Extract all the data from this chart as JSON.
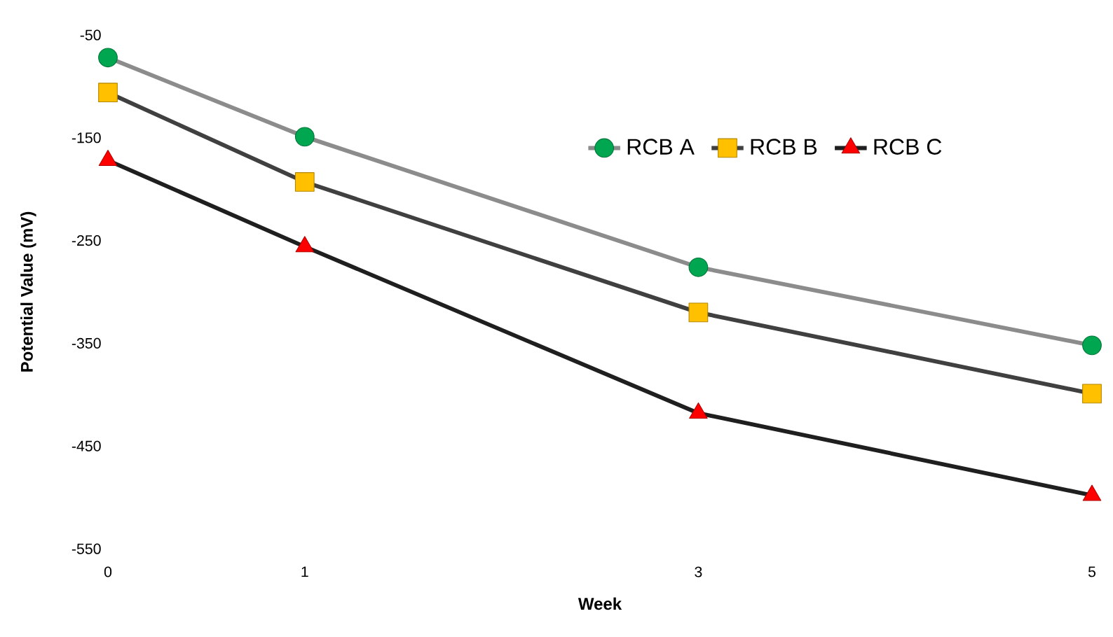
{
  "chart_data": {
    "type": "line",
    "xlabel": "Week",
    "ylabel": "Potential Value (mV)",
    "x": [
      0,
      1,
      3,
      5
    ],
    "series": [
      {
        "name": "RCB A",
        "color": "#00a650",
        "marker": "circle",
        "values": [
          -72,
          -149,
          -276,
          -352
        ]
      },
      {
        "name": "RCB B",
        "color": "#ffc000",
        "marker": "square",
        "values": [
          -106,
          -193,
          -320,
          -399
        ]
      },
      {
        "name": "RCB C",
        "color": "#ff0000",
        "marker": "triangle",
        "values": [
          -172,
          -256,
          -418,
          -498
        ]
      }
    ],
    "xlim": [
      0,
      5
    ],
    "ylim": [
      -550,
      -50
    ],
    "xticks": [
      0,
      1,
      3,
      5
    ],
    "yticks": [
      -550,
      -450,
      -350,
      -250,
      -150,
      -50
    ],
    "legend": "top",
    "line_style": "solid"
  }
}
